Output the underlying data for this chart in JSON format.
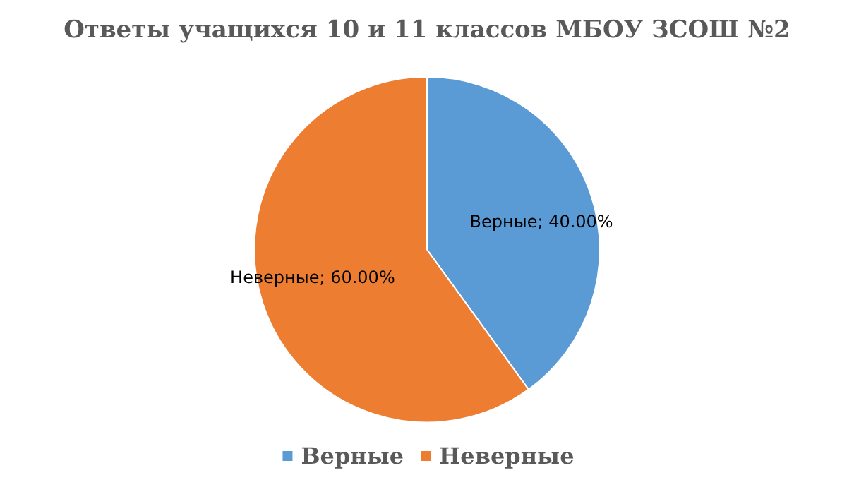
{
  "chart_data": {
    "type": "pie",
    "title": "Ответы учащихся 10 и 11 классов МБОУ ЗСОШ №2",
    "categories": [
      "Верные",
      "Неверные"
    ],
    "values": [
      40,
      60
    ],
    "colors": [
      "#5b9bd5",
      "#ed7d31"
    ],
    "value_labels": [
      "Верные; 40.00%",
      "Неверные; 60.00%"
    ],
    "legend": "bottom"
  }
}
